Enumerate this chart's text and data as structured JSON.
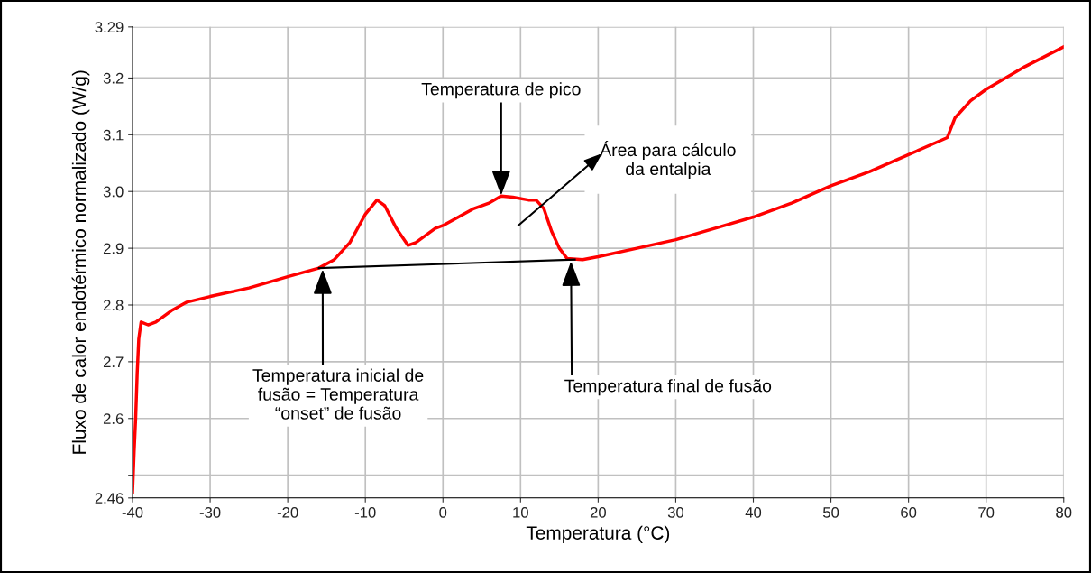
{
  "chart_data": {
    "type": "line",
    "xlabel": "Temperatura (°C)",
    "ylabel": "Fluxo de calor endotérmico normalizado (W/g)",
    "xlim": [
      -40,
      80
    ],
    "xticks": [
      -40,
      -30,
      -20,
      -10,
      0,
      10,
      20,
      30,
      40,
      50,
      60,
      70,
      80
    ],
    "ylim": [
      2.46,
      3.29
    ],
    "yticks": [
      2.46,
      {
        "value": 2.5,
        "label": null
      },
      2.6,
      2.7,
      2.8,
      2.9,
      {
        "value": 3.0,
        "label": "3.0"
      },
      3.1,
      3.2,
      3.29
    ],
    "grid": true,
    "legend": false,
    "marker": "none",
    "line_style": "solid",
    "series": [
      {
        "color": "#ff0000",
        "x": [
          -40,
          -39.8,
          -39.6,
          -39.4,
          -39.2,
          -38.9,
          -38,
          -37,
          -35,
          -33,
          -30,
          -25,
          -20,
          -16,
          -14,
          -12,
          -10,
          -8.5,
          -7.5,
          -6,
          -4.5,
          -3.5,
          -1,
          0,
          2,
          4,
          6,
          7.5,
          9,
          11,
          12,
          13,
          14,
          15,
          16,
          18,
          20,
          25,
          30,
          35,
          40,
          45,
          50,
          55,
          60,
          65,
          66,
          68,
          70,
          75,
          80
        ],
        "values": [
          2.47,
          2.54,
          2.6,
          2.68,
          2.74,
          2.77,
          2.765,
          2.77,
          2.79,
          2.805,
          2.815,
          2.83,
          2.85,
          2.865,
          2.88,
          2.91,
          2.96,
          2.985,
          2.975,
          2.935,
          2.905,
          2.91,
          2.935,
          2.94,
          2.955,
          2.97,
          2.98,
          2.992,
          2.99,
          2.985,
          2.985,
          2.97,
          2.93,
          2.9,
          2.882,
          2.88,
          2.885,
          2.9,
          2.915,
          2.935,
          2.955,
          2.98,
          3.01,
          3.035,
          3.065,
          3.095,
          3.13,
          3.16,
          3.18,
          3.22,
          3.255
        ]
      },
      {
        "color": "#000000",
        "x": [
          -16,
          17
        ],
        "values": [
          2.865,
          2.88
        ]
      }
    ],
    "annotations": [
      {
        "text": "Temperatura de pico",
        "x": 7.5,
        "y": 2.993
      },
      "Área para cálculo\nda entalpia",
      {
        "text": "Temperatura inicial de\nfusão = Temperatura\n“onset” de fusão",
        "x": -15.5,
        "y": 2.863
      },
      {
        "text": "Temperatura final de fusão",
        "x": 16.5,
        "y": 2.877
      }
    ]
  }
}
